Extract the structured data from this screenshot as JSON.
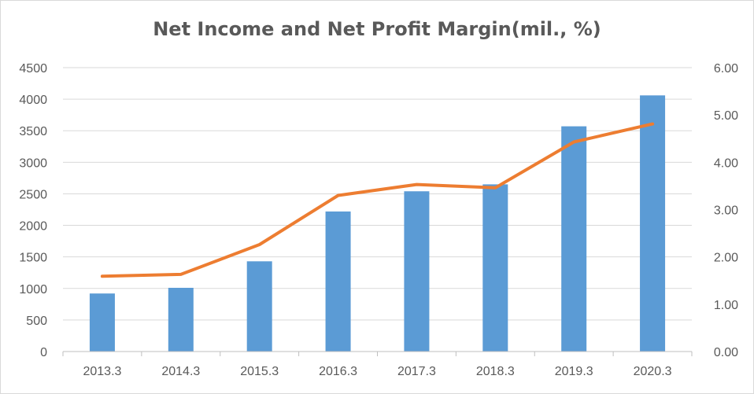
{
  "chart_data": {
    "type": "bar",
    "title": "Net Income and Net Profit Margin(mil.,  %)",
    "categories": [
      "2013.3",
      "2014.3",
      "2015.3",
      "2016.3",
      "2017.3",
      "2018.3",
      "2019.3",
      "2020.3"
    ],
    "series": [
      {
        "type": "bar",
        "axis": "left",
        "color": "#5b9bd5",
        "values": [
          920,
          1010,
          1430,
          2220,
          2540,
          2650,
          3570,
          4060
        ]
      },
      {
        "type": "line",
        "axis": "right",
        "color": "#ed7d31",
        "values": [
          1.59,
          1.63,
          2.26,
          3.3,
          3.53,
          3.46,
          4.43,
          4.81
        ]
      }
    ],
    "y_left": {
      "lim": [
        0,
        4500
      ],
      "ticks": [
        "0",
        "500",
        "1000",
        "1500",
        "2000",
        "2500",
        "3000",
        "3500",
        "4000",
        "4500"
      ]
    },
    "y_right": {
      "lim": [
        0,
        6
      ],
      "ticks": [
        "0.00",
        "1.00",
        "2.00",
        "3.00",
        "4.00",
        "5.00",
        "6.00"
      ]
    },
    "grid": true,
    "legend": "none"
  }
}
